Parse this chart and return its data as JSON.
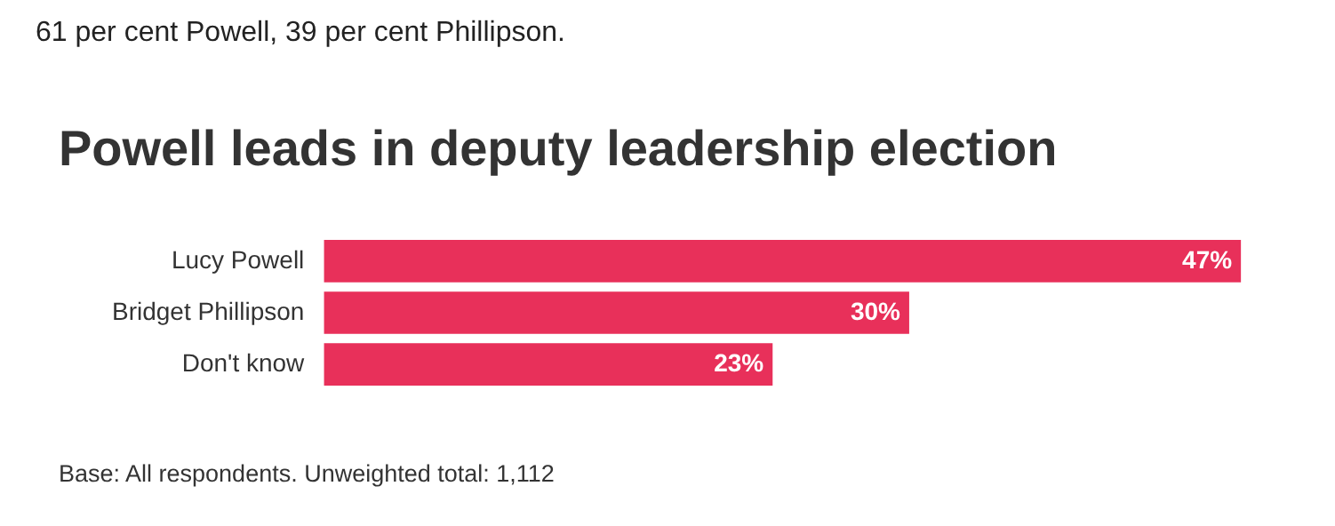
{
  "chart_data": {
    "type": "bar",
    "orientation": "horizontal",
    "title": "Powell leads in deputy leadership election",
    "categories": [
      "Lucy Powell",
      "Bridget Phillipson",
      "Don't know"
    ],
    "values": [
      47,
      30,
      23
    ],
    "value_labels": [
      "47%",
      "30%",
      "23%"
    ],
    "color": "#e8305a",
    "grid": false,
    "legend": false,
    "tick_labels": "y",
    "annotations": [
      "61 per cent Powell, 39 per cent Phillipson.",
      "Base: All respondents. Unweighted total: 1,112"
    ]
  }
}
